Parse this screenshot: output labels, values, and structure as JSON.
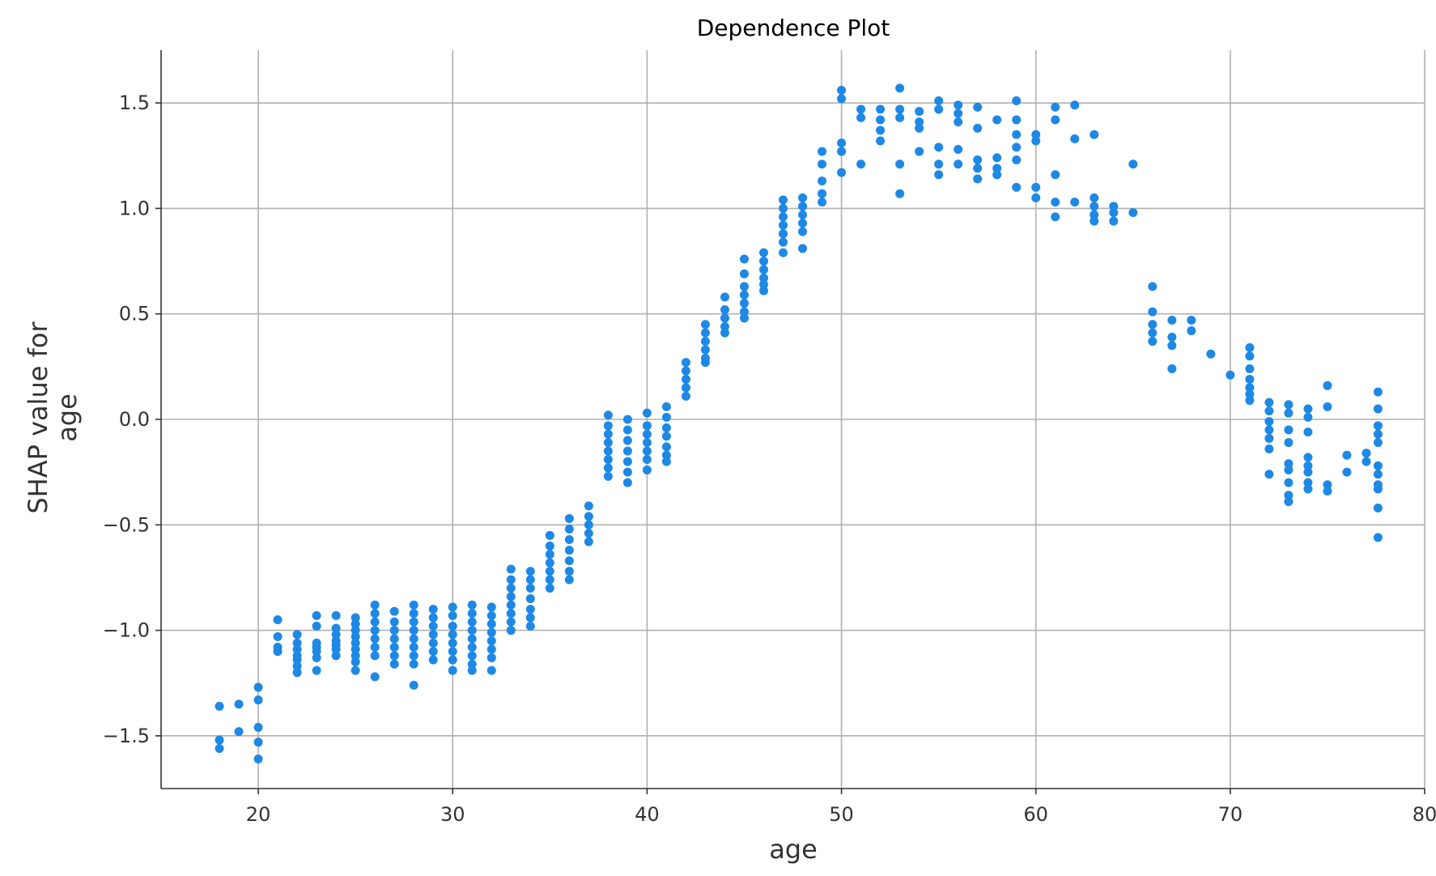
{
  "chart_data": {
    "type": "scatter",
    "title": "Dependence Plot",
    "xlabel": "age",
    "ylabel": "SHAP value for\nage",
    "xlim": [
      15,
      80
    ],
    "ylim": [
      -1.75,
      1.75
    ],
    "xticks": [
      20,
      30,
      40,
      50,
      60,
      70,
      80
    ],
    "xtick_labels": [
      "20",
      "30",
      "40",
      "50",
      "60",
      "70",
      "80"
    ],
    "yticks": [
      -1.5,
      -1.0,
      -0.5,
      0.0,
      0.5,
      1.0,
      1.5
    ],
    "ytick_labels": [
      "−1.5",
      "−1.0",
      "−0.5",
      "0.0",
      "0.5",
      "1.0",
      "1.5"
    ],
    "grid": true,
    "point_color": "#1e88e5",
    "groups": [
      {
        "x": 18,
        "y": [
          -1.36,
          -1.52,
          -1.56
        ]
      },
      {
        "x": 19,
        "y": [
          -1.35,
          -1.48
        ]
      },
      {
        "x": 20,
        "y": [
          -1.27,
          -1.33,
          -1.46,
          -1.53,
          -1.61
        ]
      },
      {
        "x": 21,
        "y": [
          -0.95,
          -1.03,
          -1.08,
          -1.1
        ]
      },
      {
        "x": 22,
        "y": [
          -1.02,
          -1.06,
          -1.09,
          -1.12,
          -1.14,
          -1.17,
          -1.2
        ]
      },
      {
        "x": 23,
        "y": [
          -0.93,
          -0.98,
          -1.06,
          -1.08,
          -1.1,
          -1.13,
          -1.19
        ]
      },
      {
        "x": 24,
        "y": [
          -0.93,
          -0.99,
          -1.02,
          -1.05,
          -1.07,
          -1.09,
          -1.12
        ]
      },
      {
        "x": 25,
        "y": [
          -0.94,
          -0.97,
          -1.0,
          -1.03,
          -1.06,
          -1.09,
          -1.12,
          -1.15,
          -1.19
        ]
      },
      {
        "x": 26,
        "y": [
          -0.88,
          -0.92,
          -0.96,
          -1.0,
          -1.04,
          -1.08,
          -1.12,
          -1.22
        ]
      },
      {
        "x": 27,
        "y": [
          -0.91,
          -0.96,
          -1.0,
          -1.04,
          -1.08,
          -1.12,
          -1.16
        ]
      },
      {
        "x": 28,
        "y": [
          -0.88,
          -0.92,
          -0.96,
          -1.0,
          -1.04,
          -1.08,
          -1.12,
          -1.16,
          -1.26
        ]
      },
      {
        "x": 29,
        "y": [
          -0.9,
          -0.94,
          -0.98,
          -1.02,
          -1.06,
          -1.1,
          -1.14
        ]
      },
      {
        "x": 30,
        "y": [
          -0.89,
          -0.93,
          -0.98,
          -1.02,
          -1.06,
          -1.1,
          -1.14,
          -1.19
        ]
      },
      {
        "x": 31,
        "y": [
          -0.88,
          -0.92,
          -0.96,
          -1.0,
          -1.04,
          -1.08,
          -1.12,
          -1.16,
          -1.19
        ]
      },
      {
        "x": 32,
        "y": [
          -0.89,
          -0.93,
          -0.97,
          -1.01,
          -1.05,
          -1.09,
          -1.13,
          -1.19
        ]
      },
      {
        "x": 33,
        "y": [
          -0.71,
          -0.76,
          -0.8,
          -0.84,
          -0.88,
          -0.92,
          -0.96,
          -1.0
        ]
      },
      {
        "x": 34,
        "y": [
          -0.72,
          -0.76,
          -0.8,
          -0.85,
          -0.9,
          -0.94,
          -0.98
        ]
      },
      {
        "x": 35,
        "y": [
          -0.55,
          -0.6,
          -0.64,
          -0.68,
          -0.72,
          -0.76,
          -0.8
        ]
      },
      {
        "x": 36,
        "y": [
          -0.47,
          -0.52,
          -0.57,
          -0.62,
          -0.67,
          -0.72,
          -0.76
        ]
      },
      {
        "x": 37,
        "y": [
          -0.41,
          -0.46,
          -0.5,
          -0.54,
          -0.58
        ]
      },
      {
        "x": 38,
        "y": [
          0.02,
          -0.03,
          -0.07,
          -0.11,
          -0.15,
          -0.19,
          -0.23,
          -0.27
        ]
      },
      {
        "x": 39,
        "y": [
          0.0,
          -0.05,
          -0.1,
          -0.15,
          -0.2,
          -0.25,
          -0.3
        ]
      },
      {
        "x": 40,
        "y": [
          0.03,
          -0.03,
          -0.07,
          -0.11,
          -0.15,
          -0.19,
          -0.24
        ]
      },
      {
        "x": 41,
        "y": [
          0.06,
          0.01,
          -0.04,
          -0.08,
          -0.13,
          -0.17,
          -0.2
        ]
      },
      {
        "x": 42,
        "y": [
          0.27,
          0.23,
          0.19,
          0.15,
          0.11
        ]
      },
      {
        "x": 43,
        "y": [
          0.45,
          0.41,
          0.37,
          0.33,
          0.29,
          0.27
        ]
      },
      {
        "x": 44,
        "y": [
          0.58,
          0.52,
          0.48,
          0.44,
          0.41
        ]
      },
      {
        "x": 45,
        "y": [
          0.76,
          0.69,
          0.63,
          0.59,
          0.55,
          0.51,
          0.48
        ]
      },
      {
        "x": 46,
        "y": [
          0.79,
          0.75,
          0.71,
          0.67,
          0.64,
          0.61
        ]
      },
      {
        "x": 47,
        "y": [
          1.04,
          1.0,
          0.96,
          0.92,
          0.88,
          0.84,
          0.79
        ]
      },
      {
        "x": 48,
        "y": [
          1.05,
          1.01,
          0.97,
          0.93,
          0.89,
          0.81
        ]
      },
      {
        "x": 49,
        "y": [
          1.27,
          1.21,
          1.13,
          1.07,
          1.03
        ]
      },
      {
        "x": 50,
        "y": [
          1.56,
          1.52,
          1.31,
          1.27,
          1.17
        ]
      },
      {
        "x": 51,
        "y": [
          1.47,
          1.43,
          1.21
        ]
      },
      {
        "x": 52,
        "y": [
          1.47,
          1.42,
          1.37,
          1.32
        ]
      },
      {
        "x": 53,
        "y": [
          1.57,
          1.47,
          1.43,
          1.21,
          1.07
        ]
      },
      {
        "x": 54,
        "y": [
          1.46,
          1.41,
          1.38,
          1.27
        ]
      },
      {
        "x": 55,
        "y": [
          1.51,
          1.47,
          1.29,
          1.21,
          1.16
        ]
      },
      {
        "x": 56,
        "y": [
          1.49,
          1.45,
          1.41,
          1.28,
          1.21
        ]
      },
      {
        "x": 57,
        "y": [
          1.48,
          1.38,
          1.23,
          1.19,
          1.14
        ]
      },
      {
        "x": 58,
        "y": [
          1.42,
          1.24,
          1.19,
          1.16
        ]
      },
      {
        "x": 59,
        "y": [
          1.51,
          1.42,
          1.35,
          1.29,
          1.23,
          1.1
        ]
      },
      {
        "x": 60,
        "y": [
          1.35,
          1.32,
          1.1,
          1.05
        ]
      },
      {
        "x": 61,
        "y": [
          1.48,
          1.42,
          1.16,
          1.03,
          0.96
        ]
      },
      {
        "x": 62,
        "y": [
          1.49,
          1.33,
          1.03
        ]
      },
      {
        "x": 63,
        "y": [
          1.35,
          1.05,
          1.01,
          0.97,
          0.94
        ]
      },
      {
        "x": 64,
        "y": [
          1.01,
          0.98,
          0.94
        ]
      },
      {
        "x": 65,
        "y": [
          1.21,
          0.98
        ]
      },
      {
        "x": 66,
        "y": [
          0.63,
          0.51,
          0.45,
          0.41,
          0.37
        ]
      },
      {
        "x": 67,
        "y": [
          0.47,
          0.39,
          0.35,
          0.24
        ]
      },
      {
        "x": 68,
        "y": [
          0.47,
          0.42
        ]
      },
      {
        "x": 69,
        "y": [
          0.31
        ]
      },
      {
        "x": 70,
        "y": [
          0.21
        ]
      },
      {
        "x": 71,
        "y": [
          0.34,
          0.3,
          0.24,
          0.19,
          0.15,
          0.12,
          0.09
        ]
      },
      {
        "x": 72,
        "y": [
          0.08,
          0.04,
          -0.01,
          -0.05,
          -0.09,
          -0.14,
          -0.26
        ]
      },
      {
        "x": 73,
        "y": [
          0.07,
          0.03,
          -0.05,
          -0.11,
          -0.21,
          -0.24,
          -0.3,
          -0.36,
          -0.39
        ]
      },
      {
        "x": 74,
        "y": [
          0.05,
          0.01,
          -0.06,
          -0.18,
          -0.22,
          -0.25,
          -0.3,
          -0.33
        ]
      },
      {
        "x": 75,
        "y": [
          0.16,
          0.06,
          -0.31,
          -0.34
        ]
      },
      {
        "x": 76,
        "y": [
          -0.17,
          -0.25
        ]
      },
      {
        "x": 77,
        "y": [
          -0.16,
          -0.2
        ]
      },
      {
        "x": 77.6,
        "y": [
          0.13,
          0.05,
          -0.03,
          -0.07,
          -0.11,
          -0.22,
          -0.26,
          -0.31,
          -0.33,
          -0.42,
          -0.56
        ]
      }
    ]
  }
}
